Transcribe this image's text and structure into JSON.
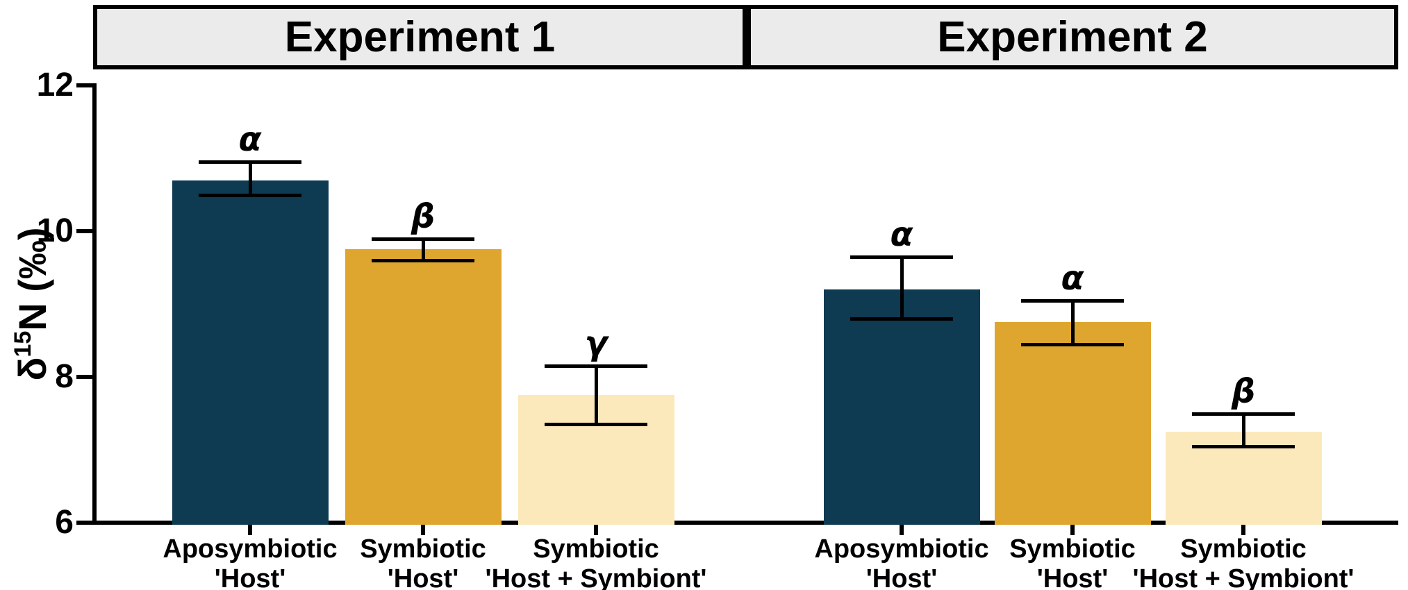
{
  "panel_headers": [
    {
      "label": "Experiment 1"
    },
    {
      "label": "Experiment 2"
    }
  ],
  "y_axis": {
    "title_parts": {
      "symbol": "δ",
      "superscript": "15",
      "rest": "N (‰)"
    },
    "ticks": [
      {
        "label": "12",
        "value": 12
      },
      {
        "label": "10",
        "value": 10
      },
      {
        "label": "8",
        "value": 8
      },
      {
        "label": "6",
        "value": 6
      }
    ]
  },
  "colors": {
    "navy": "#0e3a52",
    "gold": "#dfa62f",
    "cream": "#fce9bb",
    "header_fill": "#ebebeb",
    "axis": "#000000"
  },
  "chart_data": {
    "type": "bar",
    "ylabel": "δ15N (‰)",
    "ylim": [
      6,
      12
    ],
    "yticks": [
      6,
      8,
      10,
      12
    ],
    "grid": false,
    "legend": "none",
    "panels": [
      {
        "title": "Experiment 1",
        "bars": [
          {
            "category_line1": "Aposymbiotic",
            "category_line2": "'Host'",
            "value": 10.7,
            "err_low": 10.5,
            "err_high": 10.95,
            "sig": "α",
            "color_key": "navy"
          },
          {
            "category_line1": "Symbiotic",
            "category_line2": "'Host'",
            "value": 9.75,
            "err_low": 9.6,
            "err_high": 9.9,
            "sig": "β",
            "color_key": "gold"
          },
          {
            "category_line1": "Symbiotic",
            "category_line2": "'Host + Symbiont'",
            "value": 7.75,
            "err_low": 7.35,
            "err_high": 8.15,
            "sig": "γ",
            "color_key": "cream"
          }
        ]
      },
      {
        "title": "Experiment 2",
        "bars": [
          {
            "category_line1": "Aposymbiotic",
            "category_line2": "'Host'",
            "value": 9.2,
            "err_low": 8.8,
            "err_high": 9.65,
            "sig": "α",
            "color_key": "navy"
          },
          {
            "category_line1": "Symbiotic",
            "category_line2": "'Host'",
            "value": 8.75,
            "err_low": 8.45,
            "err_high": 9.05,
            "sig": "α",
            "color_key": "gold"
          },
          {
            "category_line1": "Symbiotic",
            "category_line2": "'Host + Symbiont'",
            "value": 7.25,
            "err_low": 7.05,
            "err_high": 7.5,
            "sig": "β",
            "color_key": "cream"
          }
        ]
      }
    ]
  }
}
